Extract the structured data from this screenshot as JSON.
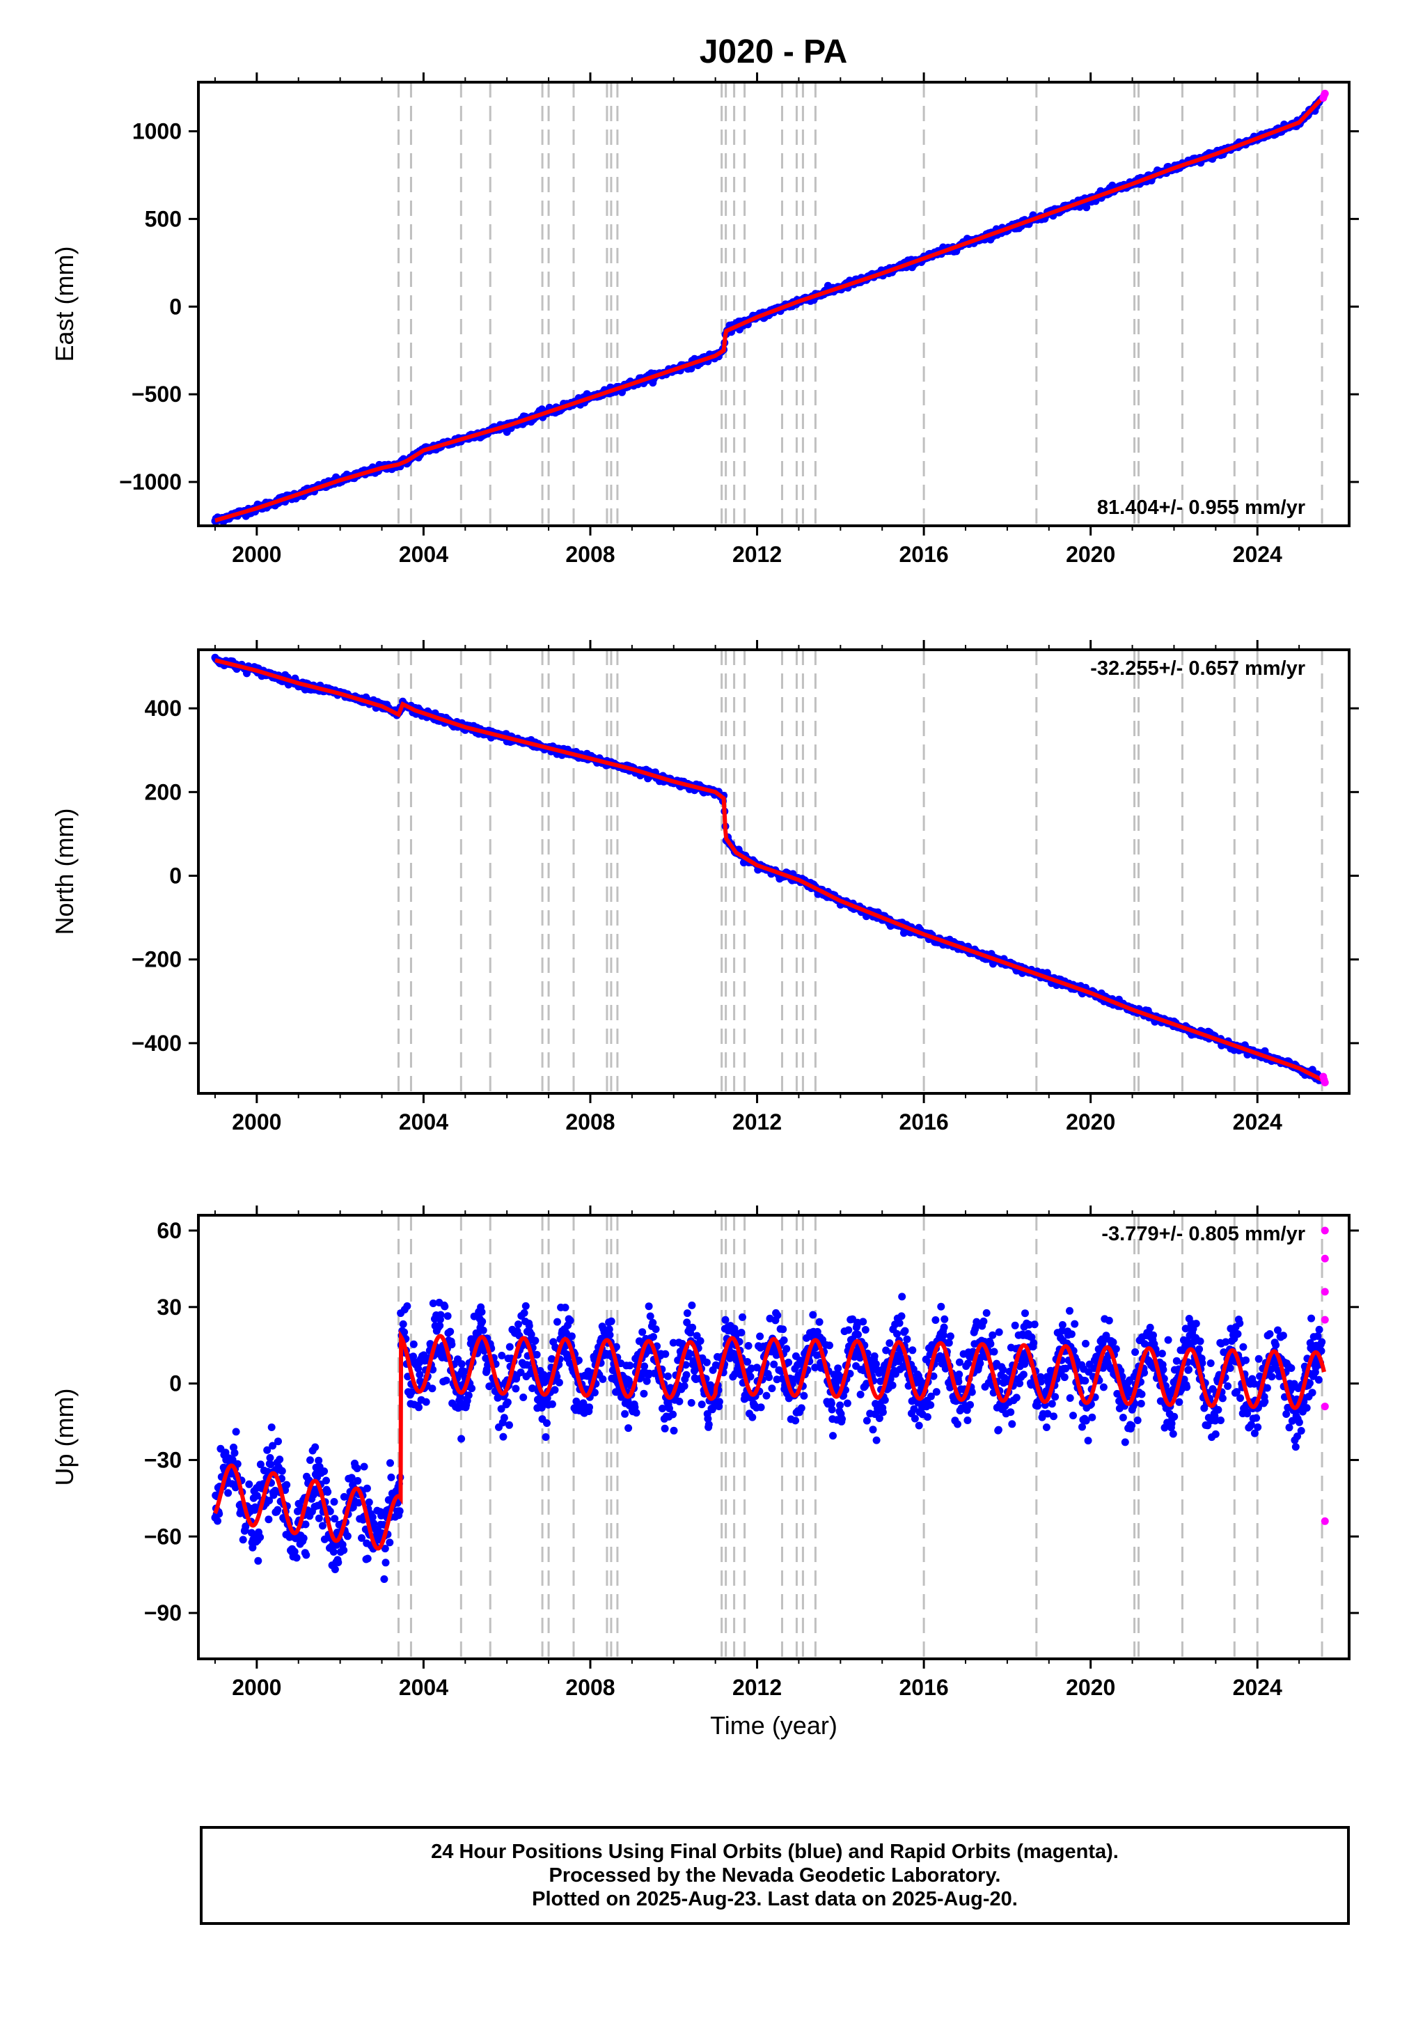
{
  "title": "J020 - PA",
  "colors": {
    "final_orbits": "#0000ff",
    "rapid_orbits": "#ff00ff",
    "model": "#ff0000",
    "event_lines": "#c0c0c0"
  },
  "chart_data": [
    {
      "type": "scatter",
      "ylabel": "East (mm)",
      "xlabel": "",
      "rate": "81.404+/- 0.955 mm/yr",
      "xlim": [
        1998.6,
        2026.2
      ],
      "ylim": [
        -1250,
        1280
      ],
      "xticks": [
        "2000",
        "2004",
        "2008",
        "2012",
        "2016",
        "2020",
        "2024"
      ],
      "yticks": [
        -1000,
        -500,
        0,
        500,
        1000
      ],
      "ytick_labels": [
        "−1000",
        "−500",
        "0",
        "500",
        "1000"
      ],
      "series": [
        {
          "x": [
            1999.0,
            2000.0,
            2001.0,
            2002.0,
            2003.0,
            2003.4,
            2003.6,
            2004.0,
            2005.0,
            2006.0,
            2007.0,
            2008.0,
            2009.0,
            2010.0,
            2011.0,
            2011.2,
            2011.25,
            2012.0,
            2013.0,
            2014.0,
            2015.0,
            2016.0,
            2017.0,
            2018.0,
            2019.0,
            2020.0,
            2021.0,
            2022.0,
            2023.0,
            2024.0,
            2025.0,
            2025.6
          ],
          "values": [
            -1220,
            -1150,
            -1070,
            -990,
            -920,
            -900,
            -880,
            -820,
            -750,
            -680,
            -600,
            -520,
            -440,
            -360,
            -280,
            -250,
            -140,
            -60,
            30,
            110,
            190,
            275,
            360,
            445,
            530,
            615,
            700,
            790,
            870,
            960,
            1050,
            1200
          ]
        }
      ],
      "rapid_points": [
        [
          2025.58,
          1190
        ],
        [
          2025.6,
          1205
        ],
        [
          2025.62,
          1215
        ]
      ]
    },
    {
      "type": "scatter",
      "ylabel": "North (mm)",
      "xlabel": "",
      "rate": "-32.255+/- 0.657 mm/yr",
      "xlim": [
        1998.6,
        2026.2
      ],
      "ylim": [
        -520,
        540
      ],
      "xticks": [
        "2000",
        "2004",
        "2008",
        "2012",
        "2016",
        "2020",
        "2024"
      ],
      "yticks": [
        -400,
        -200,
        0,
        200,
        400
      ],
      "ytick_labels": [
        "−400",
        "−200",
        "0",
        "200",
        "400"
      ],
      "series": [
        {
          "x": [
            1999.0,
            2000.0,
            2001.0,
            2002.0,
            2003.0,
            2003.4,
            2003.5,
            2003.8,
            2005.0,
            2006.0,
            2007.0,
            2008.0,
            2009.0,
            2010.0,
            2011.0,
            2011.2,
            2011.25,
            2011.5,
            2012.0,
            2013.0,
            2014.0,
            2015.0,
            2016.0,
            2017.0,
            2018.0,
            2019.0,
            2020.0,
            2021.0,
            2022.0,
            2023.0,
            2024.0,
            2025.0,
            2025.6
          ],
          "values": [
            515,
            490,
            460,
            435,
            405,
            385,
            410,
            395,
            355,
            330,
            305,
            280,
            255,
            225,
            200,
            185,
            90,
            55,
            25,
            -10,
            -60,
            -100,
            -140,
            -175,
            -210,
            -245,
            -280,
            -320,
            -355,
            -390,
            -425,
            -460,
            -490
          ]
        }
      ],
      "rapid_points": [
        [
          2025.58,
          -480
        ],
        [
          2025.6,
          -488
        ],
        [
          2025.62,
          -494
        ]
      ]
    },
    {
      "type": "scatter",
      "ylabel": "Up (mm)",
      "xlabel": "Time (year)",
      "rate": "-3.779+/- 0.805 mm/yr",
      "xlim": [
        1998.6,
        2026.2
      ],
      "ylim": [
        -108,
        66
      ],
      "xticks": [
        "2000",
        "2004",
        "2008",
        "2012",
        "2016",
        "2020",
        "2024"
      ],
      "yticks": [
        -90,
        -60,
        -30,
        0,
        30,
        60
      ],
      "ytick_labels": [
        "−90",
        "−60",
        "−30",
        "0",
        "30",
        "60"
      ],
      "offset_epoch": 2003.45,
      "before_offset_mean": -42,
      "after_offset_mean": 5,
      "seasonal_amplitude_mm": 11,
      "rapid_points": [
        [
          2025.62,
          60
        ],
        [
          2025.62,
          49
        ],
        [
          2025.62,
          36
        ],
        [
          2025.62,
          25
        ],
        [
          2025.62,
          -9
        ],
        [
          2025.62,
          -54
        ]
      ]
    }
  ],
  "event_lines": [
    2003.4,
    2003.7,
    2004.9,
    2005.6,
    2006.85,
    2007.0,
    2007.6,
    2008.4,
    2008.5,
    2008.65,
    2011.15,
    2011.25,
    2011.45,
    2011.7,
    2012.6,
    2012.95,
    2013.1,
    2013.4,
    2016.0,
    2018.7,
    2021.05,
    2021.15,
    2022.2,
    2023.45,
    2024.0,
    2025.55
  ],
  "footer": {
    "line1": "24 Hour Positions Using Final Orbits (blue) and Rapid Orbits (magenta).",
    "line2": "Processed by the Nevada Geodetic Laboratory.",
    "line3": "Plotted on 2025-Aug-23. Last data on 2025-Aug-20."
  }
}
